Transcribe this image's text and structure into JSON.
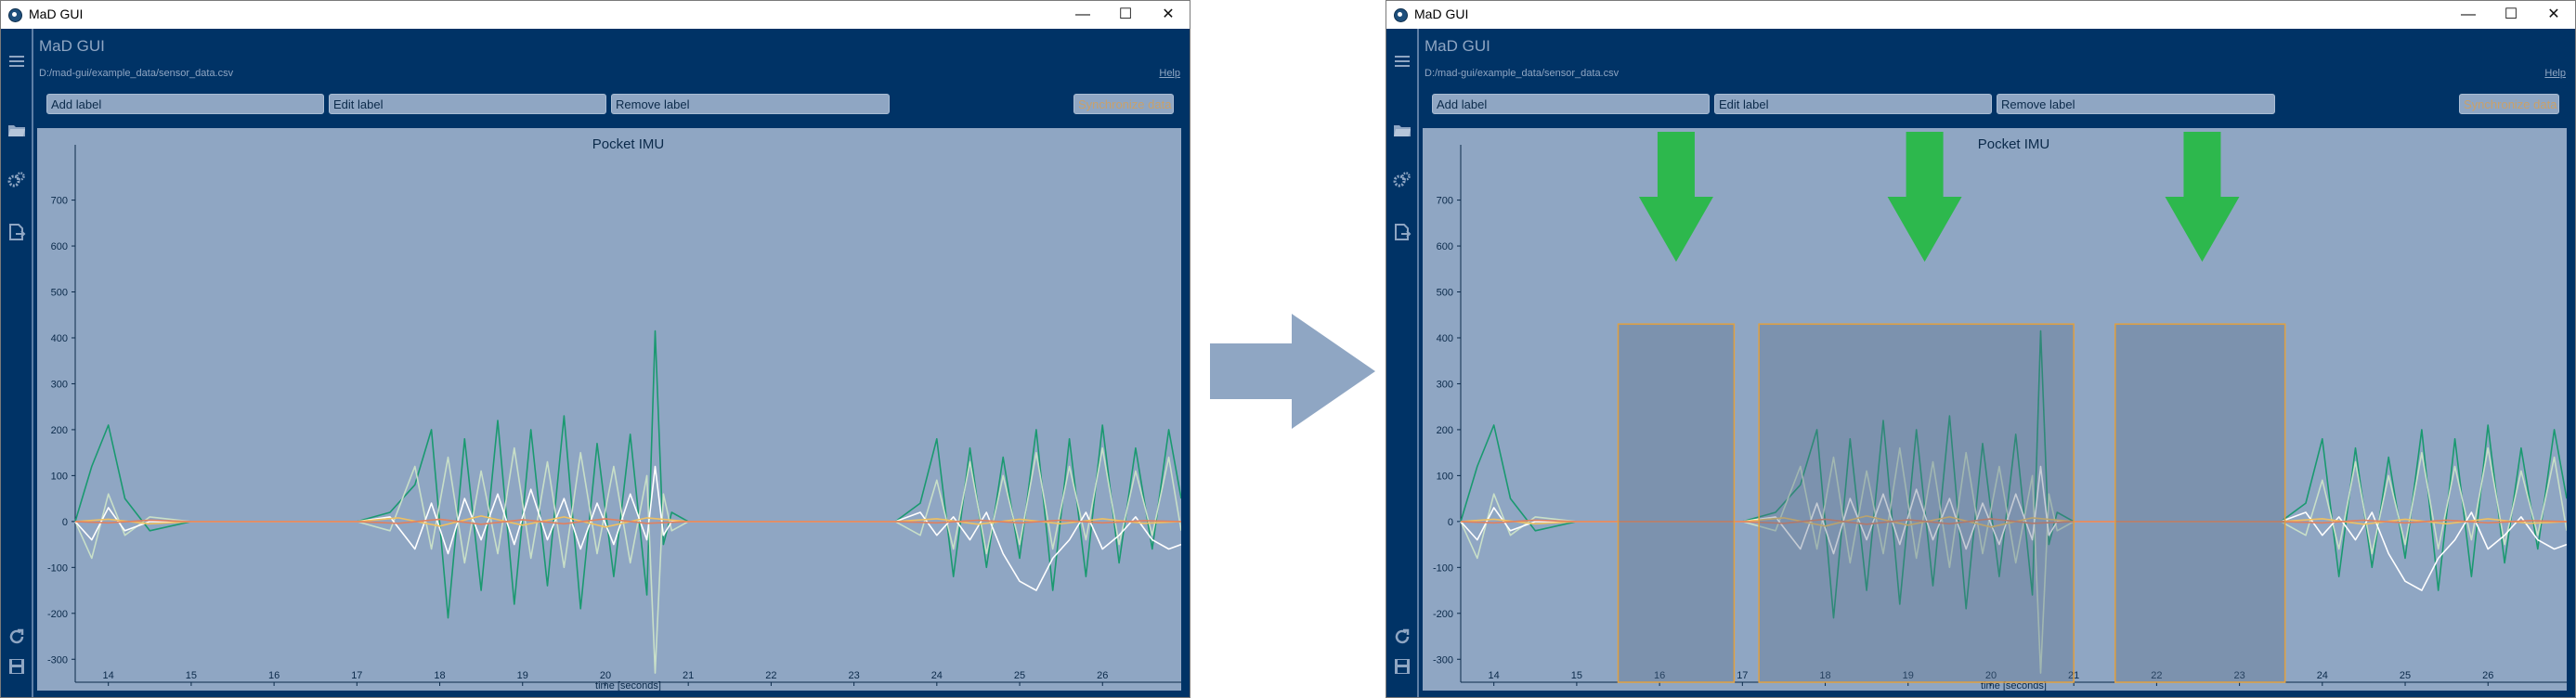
{
  "screens": [
    {
      "window": {
        "title": "MaD GUI",
        "controls": {
          "minimize": "—",
          "maximize": "☐",
          "close": "✕"
        }
      },
      "app": {
        "title": "MaD GUI",
        "file_path": "D:/mad-gui/example_data/sensor_data.csv",
        "help_link": "Help"
      },
      "toolbar": {
        "add_label": "Add label",
        "edit_label": "Edit label",
        "remove_label": "Remove label",
        "synchronize": "Synchronize data"
      },
      "sidebar_icons": [
        "menu-icon",
        "folder-icon",
        "gears-icon",
        "export-icon",
        "reload-icon",
        "save-icon"
      ],
      "has_labels": false
    },
    {
      "window": {
        "title": "MaD GUI",
        "controls": {
          "minimize": "—",
          "maximize": "☐",
          "close": "✕"
        }
      },
      "app": {
        "title": "MaD GUI",
        "file_path": "D:/mad-gui/example_data/sensor_data.csv",
        "help_link": "Help"
      },
      "toolbar": {
        "add_label": "Add label",
        "edit_label": "Edit label",
        "remove_label": "Remove label",
        "synchronize": "Synchronize data"
      },
      "sidebar_icons": [
        "menu-icon",
        "folder-icon",
        "gears-icon",
        "export-icon",
        "reload-icon",
        "save-icon"
      ],
      "has_labels": true
    }
  ],
  "chart_data": {
    "type": "line",
    "title": "Pocket IMU",
    "xlabel": "time [seconds]",
    "ylabel": "",
    "xlim": [
      13.6,
      26.95
    ],
    "ylim": [
      -350,
      780
    ],
    "xticks": [
      14,
      15,
      16,
      17,
      18,
      19,
      20,
      21,
      22,
      23,
      24,
      25,
      26
    ],
    "yticks": [
      700,
      600,
      500,
      400,
      300,
      200,
      100,
      0,
      -100,
      -200,
      -300
    ],
    "series": [
      {
        "color": "#1a9970",
        "x": [
          13.6,
          13.8,
          14.0,
          14.2,
          14.5,
          15.0,
          15.5,
          16.0,
          16.5,
          17.0,
          17.4,
          17.7,
          17.9,
          18.1,
          18.3,
          18.5,
          18.7,
          18.9,
          19.1,
          19.3,
          19.5,
          19.7,
          19.9,
          20.1,
          20.3,
          20.5,
          20.6,
          20.7,
          20.8,
          21.0,
          21.5,
          22.0,
          22.5,
          23.0,
          23.5,
          23.8,
          24.0,
          24.2,
          24.4,
          24.6,
          24.8,
          25.0,
          25.2,
          25.4,
          25.6,
          25.8,
          26.0,
          26.2,
          26.4,
          26.6,
          26.8,
          26.95
        ],
        "y": [
          0,
          120,
          210,
          50,
          -20,
          0,
          0,
          0,
          0,
          0,
          20,
          80,
          200,
          -210,
          180,
          -150,
          220,
          -180,
          200,
          -140,
          230,
          -190,
          170,
          -120,
          190,
          -160,
          415,
          -50,
          20,
          0,
          0,
          0,
          0,
          0,
          0,
          40,
          180,
          -120,
          160,
          -100,
          140,
          -80,
          200,
          -150,
          180,
          -120,
          210,
          -90,
          160,
          -60,
          200,
          50
        ]
      },
      {
        "color": "#c8dfc8",
        "x": [
          13.6,
          13.8,
          14.0,
          14.2,
          14.5,
          15.0,
          15.5,
          16.0,
          16.5,
          17.0,
          17.4,
          17.7,
          17.9,
          18.1,
          18.3,
          18.5,
          18.7,
          18.9,
          19.1,
          19.3,
          19.5,
          19.7,
          19.9,
          20.1,
          20.3,
          20.5,
          20.6,
          20.7,
          20.8,
          21.0,
          21.5,
          22.0,
          22.5,
          23.0,
          23.5,
          23.8,
          24.0,
          24.2,
          24.4,
          24.6,
          24.8,
          25.0,
          25.2,
          25.4,
          25.6,
          25.8,
          26.0,
          26.2,
          26.4,
          26.6,
          26.8,
          26.95
        ],
        "y": [
          0,
          -80,
          60,
          -30,
          10,
          0,
          0,
          0,
          0,
          0,
          -20,
          120,
          -60,
          140,
          -90,
          110,
          -70,
          160,
          -80,
          130,
          -100,
          150,
          -70,
          120,
          -90,
          100,
          -330,
          60,
          -20,
          0,
          0,
          0,
          0,
          0,
          0,
          -30,
          90,
          -60,
          130,
          -70,
          100,
          -50,
          150,
          -60,
          120,
          -40,
          160,
          -50,
          110,
          -30,
          140,
          -20
        ]
      },
      {
        "color": "#ffffff",
        "x": [
          13.6,
          13.8,
          14.0,
          14.2,
          14.5,
          15.0,
          15.5,
          16.0,
          16.5,
          17.0,
          17.4,
          17.7,
          17.9,
          18.1,
          18.3,
          18.5,
          18.7,
          18.9,
          19.1,
          19.3,
          19.5,
          19.7,
          19.9,
          20.1,
          20.3,
          20.5,
          20.6,
          20.7,
          20.8,
          21.0,
          21.5,
          22.0,
          22.5,
          23.0,
          23.5,
          23.8,
          24.0,
          24.2,
          24.4,
          24.6,
          24.8,
          25.0,
          25.2,
          25.4,
          25.6,
          25.8,
          26.0,
          26.2,
          26.4,
          26.6,
          26.8,
          26.95
        ],
        "y": [
          0,
          -40,
          30,
          -20,
          0,
          0,
          0,
          0,
          0,
          0,
          10,
          -60,
          40,
          -70,
          50,
          -40,
          60,
          -50,
          70,
          -40,
          50,
          -60,
          40,
          -50,
          60,
          -40,
          120,
          -30,
          0,
          0,
          0,
          0,
          0,
          0,
          0,
          20,
          -30,
          10,
          -40,
          20,
          -70,
          -130,
          -150,
          -80,
          -40,
          20,
          -60,
          -30,
          10,
          -40,
          -60,
          -50
        ]
      },
      {
        "color": "#f0c060",
        "x": [
          13.6,
          14.0,
          14.5,
          15.0,
          15.5,
          16.0,
          16.5,
          17.0,
          17.5,
          18.0,
          18.5,
          19.0,
          19.5,
          20.0,
          20.5,
          21.0,
          21.5,
          22.0,
          22.5,
          23.0,
          23.5,
          24.0,
          24.5,
          25.0,
          25.5,
          26.0,
          26.5,
          26.95
        ],
        "y": [
          0,
          5,
          -5,
          0,
          0,
          0,
          0,
          0,
          8,
          -10,
          12,
          -8,
          10,
          -12,
          8,
          0,
          0,
          0,
          0,
          0,
          0,
          6,
          -6,
          5,
          -5,
          6,
          -4,
          0
        ]
      },
      {
        "color": "#e08060",
        "x": [
          13.6,
          14.0,
          14.5,
          15.0,
          15.5,
          16.0,
          16.5,
          17.0,
          17.5,
          18.0,
          18.5,
          19.0,
          19.5,
          20.0,
          20.5,
          21.0,
          21.5,
          22.0,
          22.5,
          23.0,
          23.5,
          24.0,
          24.5,
          25.0,
          25.5,
          26.0,
          26.5,
          26.95
        ],
        "y": [
          0,
          -3,
          3,
          0,
          0,
          0,
          0,
          0,
          -4,
          5,
          -6,
          4,
          -5,
          6,
          -4,
          0,
          0,
          0,
          0,
          0,
          0,
          -3,
          3,
          -3,
          3,
          -3,
          2,
          0
        ]
      }
    ],
    "label_regions": [
      [
        15.5,
        16.9
      ],
      [
        17.2,
        21.0
      ],
      [
        21.5,
        23.55
      ]
    ],
    "label_arrows_x": [
      16.2,
      19.2,
      22.55
    ]
  }
}
